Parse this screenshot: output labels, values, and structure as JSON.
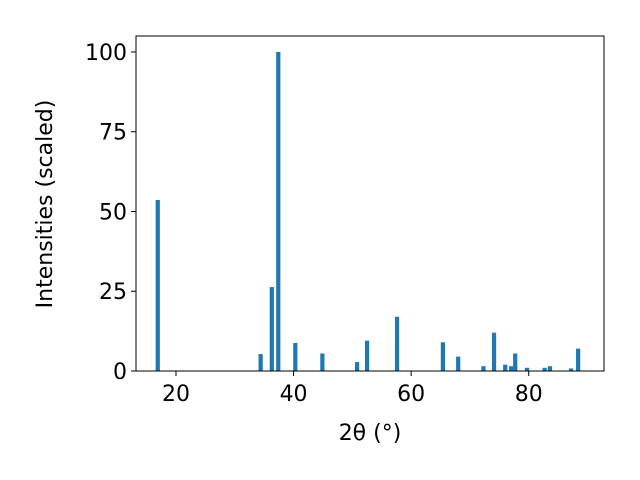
{
  "chart_data": {
    "type": "bar",
    "x_label": "2θ (°)",
    "y_label": "Intensities (scaled)",
    "x": [
      16.9,
      34.4,
      36.3,
      37.4,
      40.3,
      44.9,
      50.8,
      52.5,
      57.6,
      65.4,
      68.0,
      72.3,
      74.1,
      76.0,
      77.0,
      77.7,
      79.7,
      82.7,
      83.6,
      87.2,
      88.4
    ],
    "values": [
      53.6,
      5.3,
      26.3,
      100,
      8.8,
      5.5,
      2.8,
      9.5,
      17,
      9,
      4.5,
      1.5,
      12,
      2,
      1.5,
      5.5,
      1,
      1,
      1.5,
      0.8,
      7
    ],
    "color": "#1f77b4",
    "xlim": [
      13.2,
      92.8
    ],
    "xticks": [
      20,
      40,
      60,
      80
    ],
    "ylim": [
      0,
      105
    ],
    "yticks": [
      0,
      25,
      50,
      75,
      100
    ],
    "grid": false
  }
}
